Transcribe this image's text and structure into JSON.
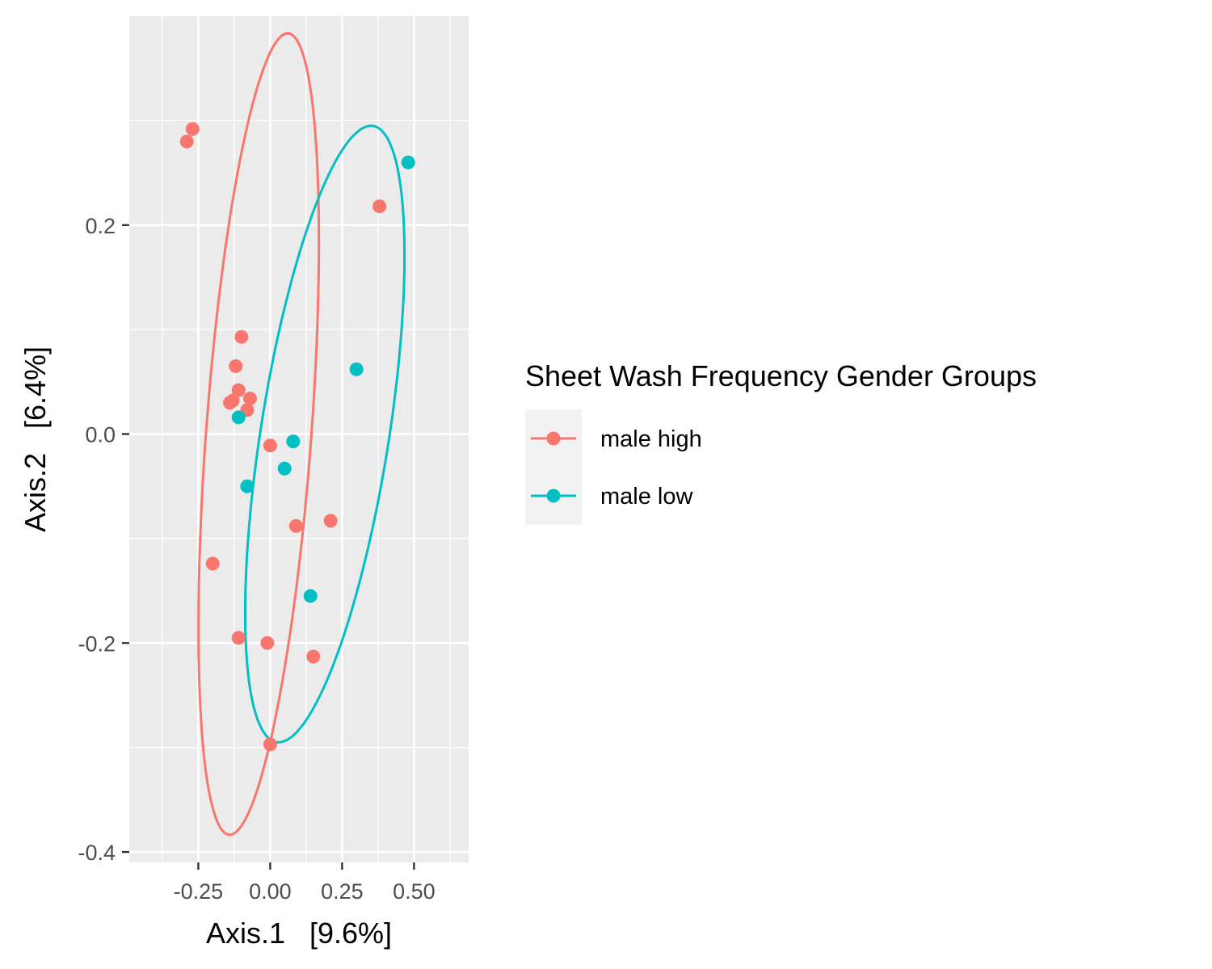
{
  "chart_data": {
    "type": "scatter",
    "title": "",
    "xlabel": "Axis.1   [9.6%]",
    "ylabel": "Axis.2   [6.4%]",
    "xlim": [
      -0.49,
      0.69
    ],
    "ylim": [
      -0.41,
      0.4
    ],
    "x_ticks": [
      -0.25,
      0.0,
      0.25,
      0.5
    ],
    "x_tick_labels": [
      "-0.25",
      "0.00",
      "0.25",
      "0.50"
    ],
    "y_ticks": [
      -0.4,
      -0.2,
      0.0,
      0.2
    ],
    "y_tick_labels": [
      "-0.4",
      "-0.2",
      "0.0",
      "0.2"
    ],
    "grid": true,
    "legend": {
      "title": "Sheet Wash Frequency Gender Groups",
      "position": "right"
    },
    "series": [
      {
        "name": "male high",
        "color": "#F8766D",
        "points": [
          [
            -0.29,
            0.28
          ],
          [
            -0.27,
            0.292
          ],
          [
            0.38,
            0.218
          ],
          [
            -0.1,
            0.093
          ],
          [
            -0.12,
            0.065
          ],
          [
            -0.11,
            0.042
          ],
          [
            -0.13,
            0.032
          ],
          [
            -0.07,
            0.034
          ],
          [
            -0.08,
            0.023
          ],
          [
            -0.14,
            0.03
          ],
          [
            0.0,
            -0.011
          ],
          [
            0.09,
            -0.088
          ],
          [
            0.21,
            -0.083
          ],
          [
            -0.2,
            -0.124
          ],
          [
            -0.11,
            -0.195
          ],
          [
            -0.01,
            -0.2
          ],
          [
            0.15,
            -0.213
          ],
          [
            0.0,
            -0.297
          ]
        ],
        "ellipse": {
          "center": [
            -0.04,
            0.0
          ],
          "semi_major": 0.4,
          "semi_minor": 0.176,
          "angle_deg": 71.6
        }
      },
      {
        "name": "male low",
        "color": "#00BFC4",
        "points": [
          [
            0.48,
            0.26
          ],
          [
            0.3,
            0.062
          ],
          [
            -0.11,
            0.016
          ],
          [
            0.08,
            -0.007
          ],
          [
            0.05,
            -0.033
          ],
          [
            -0.08,
            -0.05
          ],
          [
            0.14,
            -0.155
          ]
        ],
        "ellipse": {
          "center": [
            0.19,
            0.0
          ],
          "semi_major": 0.36,
          "semi_minor": 0.185,
          "angle_deg": 48.1
        }
      }
    ]
  }
}
